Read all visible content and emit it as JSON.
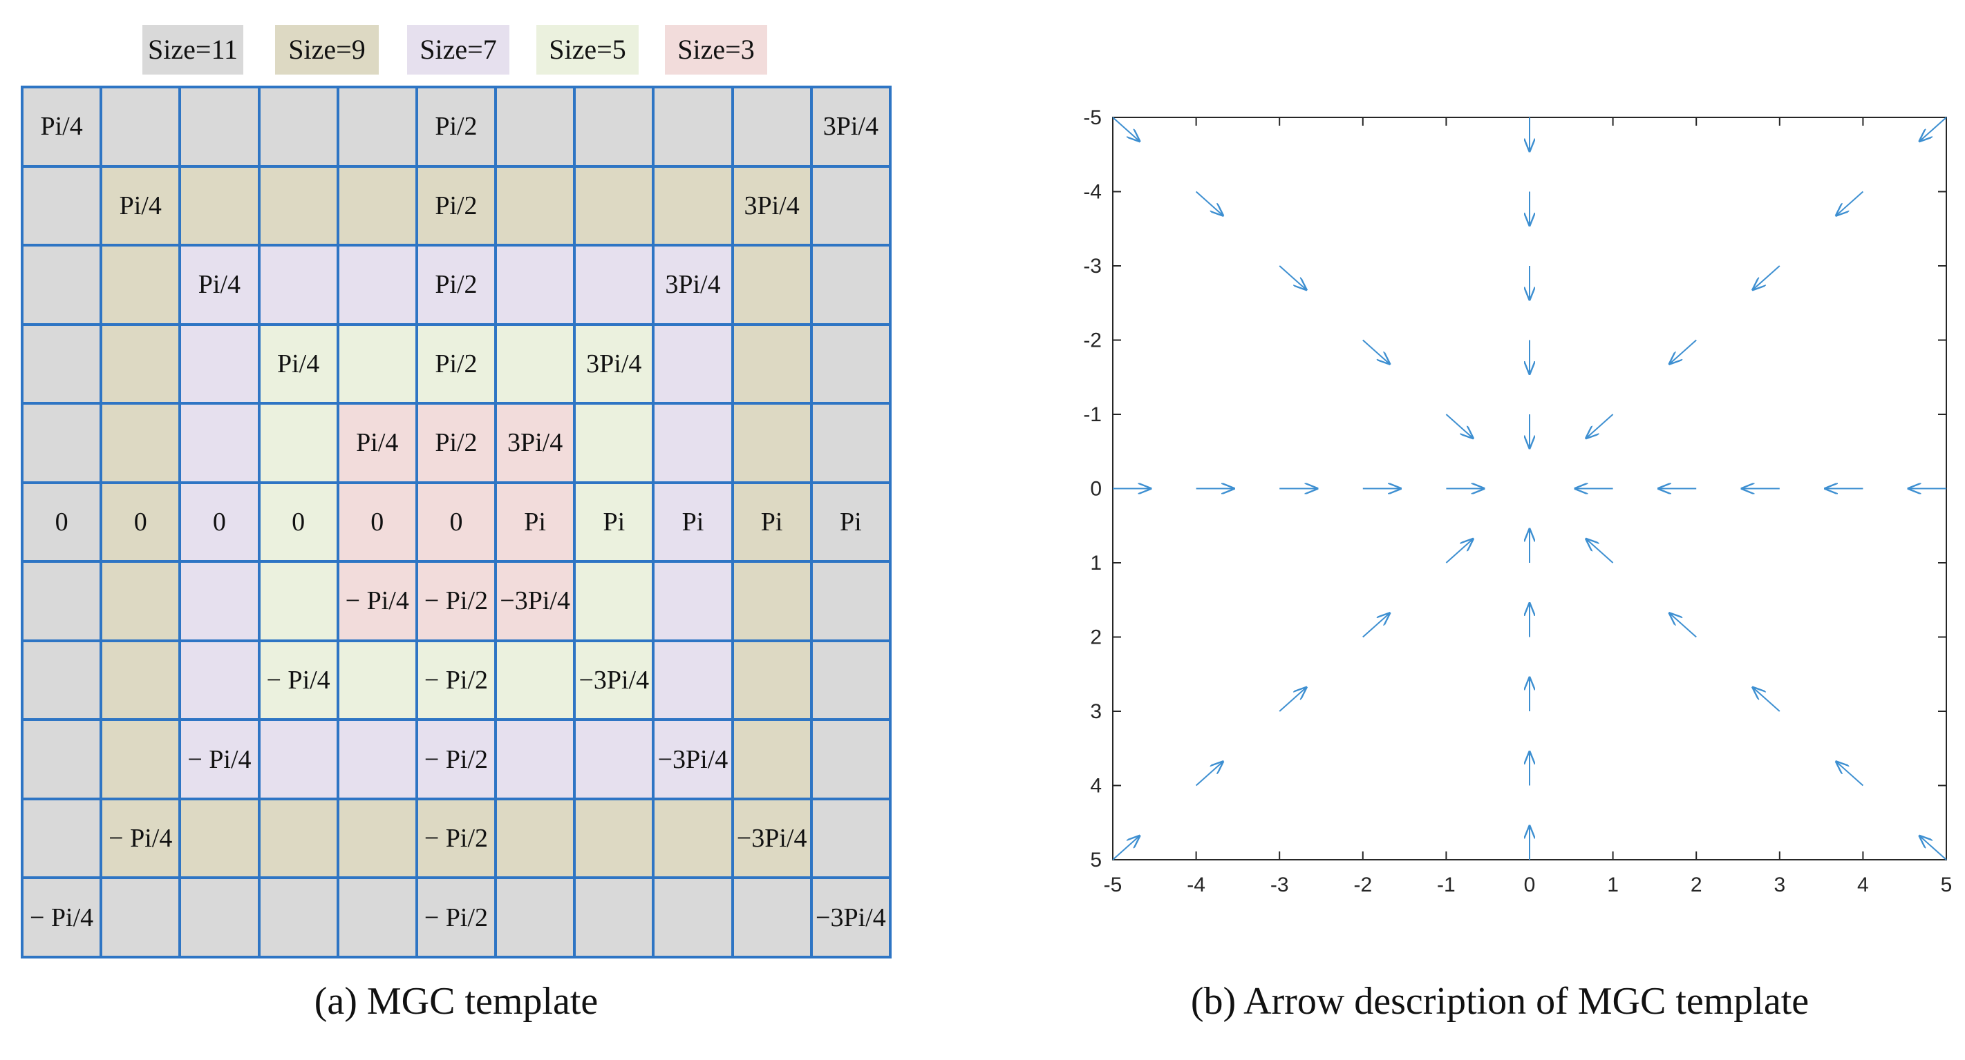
{
  "legend": [
    {
      "label": "Size=11",
      "color": "#d9d9d9"
    },
    {
      "label": "Size=9",
      "color": "#ddd9c3"
    },
    {
      "label": "Size=7",
      "color": "#e6e0ee"
    },
    {
      "label": "Size=5",
      "color": "#ebf1de"
    },
    {
      "label": "Size=3",
      "color": "#f2dcdb"
    }
  ],
  "template": {
    "grid_line_color": "#2e75c4",
    "rows": [
      [
        "Pi/4",
        "",
        "",
        "",
        "",
        "Pi/2",
        "",
        "",
        "",
        "",
        "3Pi/4"
      ],
      [
        "",
        "Pi/4",
        "",
        "",
        "",
        "Pi/2",
        "",
        "",
        "",
        "3Pi/4",
        ""
      ],
      [
        "",
        "",
        "Pi/4",
        "",
        "",
        "Pi/2",
        "",
        "",
        "3Pi/4",
        "",
        ""
      ],
      [
        "",
        "",
        "",
        "Pi/4",
        "",
        "Pi/2",
        "",
        "3Pi/4",
        "",
        "",
        ""
      ],
      [
        "",
        "",
        "",
        "",
        "Pi/4",
        "Pi/2",
        "3Pi/4",
        "",
        "",
        "",
        ""
      ],
      [
        "0",
        "0",
        "0",
        "0",
        "0",
        "0",
        "Pi",
        "Pi",
        "Pi",
        "Pi",
        "Pi"
      ],
      [
        "",
        "",
        "",
        "",
        "− Pi/4",
        "− Pi/2",
        "−3Pi/4",
        "",
        "",
        "",
        ""
      ],
      [
        "",
        "",
        "",
        "− Pi/4",
        "",
        "− Pi/2",
        "",
        "−3Pi/4",
        "",
        "",
        ""
      ],
      [
        "",
        "",
        "− Pi/4",
        "",
        "",
        "− Pi/2",
        "",
        "",
        "−3Pi/4",
        "",
        ""
      ],
      [
        "",
        "− Pi/4",
        "",
        "",
        "",
        "− Pi/2",
        "",
        "",
        "",
        "−3Pi/4",
        ""
      ],
      [
        "− Pi/4",
        "",
        "",
        "",
        "",
        "− Pi/2",
        "",
        "",
        "",
        "",
        "−3Pi/4"
      ]
    ]
  },
  "chart_data": {
    "type": "quiver",
    "arrow_color": "#3d8fd1",
    "xlim": [
      -5,
      5
    ],
    "ylim": [
      -5,
      5
    ],
    "y_axis_reversed": true,
    "xticks": [
      -5,
      -4,
      -3,
      -2,
      -1,
      0,
      1,
      2,
      3,
      4,
      5
    ],
    "yticks": [
      -5,
      -4,
      -3,
      -2,
      -1,
      0,
      1,
      2,
      3,
      4,
      5
    ],
    "arrow_length_scale": 0.45,
    "note": "Each nonzero grid point on the axes and diagonals has an arrow pointing toward the origin (0,0)"
  },
  "captions": {
    "a": "(a) MGC template",
    "b": "(b) Arrow description of MGC template"
  }
}
